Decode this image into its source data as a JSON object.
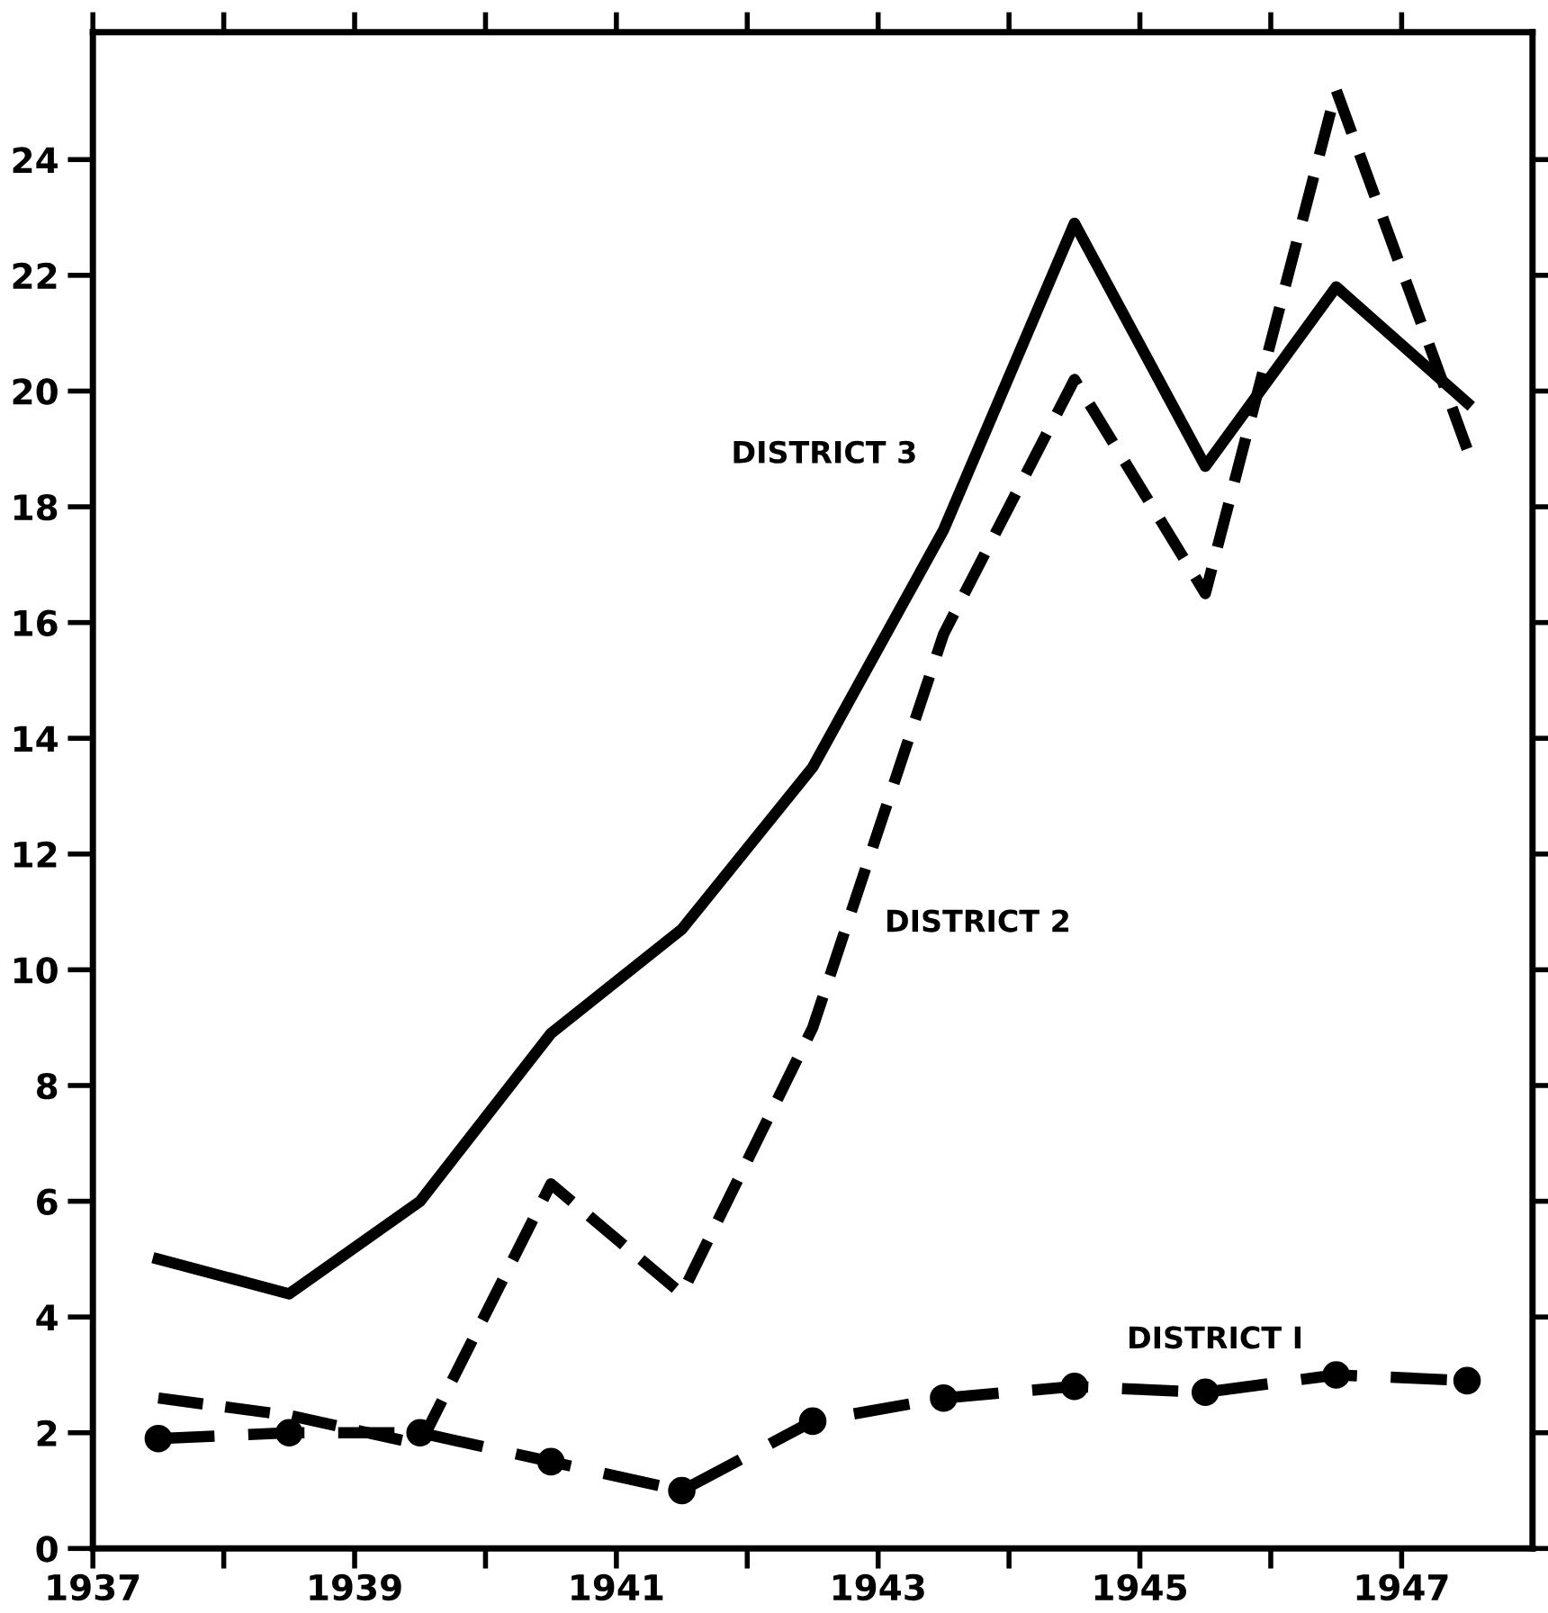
{
  "chart_data": {
    "type": "line",
    "x": [
      1937.5,
      1938.5,
      1939.5,
      1940.5,
      1941.5,
      1942.5,
      1943.5,
      1944.5,
      1945.5,
      1946.5,
      1947.5
    ],
    "series": [
      {
        "name": "DISTRICT 3",
        "color": "#000000",
        "line_style": "solid",
        "marker": "none",
        "values": [
          5.0,
          4.4,
          6.0,
          8.9,
          10.7,
          13.5,
          17.6,
          22.9,
          18.7,
          21.8,
          19.8
        ]
      },
      {
        "name": "DISTRICT 2",
        "color": "#000000",
        "line_style": "dashed",
        "marker": "none",
        "values": [
          2.6,
          2.3,
          1.8,
          6.3,
          4.4,
          9.0,
          15.8,
          20.2,
          16.5,
          25.2,
          19.0
        ]
      },
      {
        "name": "DISTRICT I",
        "color": "#000000",
        "line_style": "dashed",
        "marker": "circle",
        "values": [
          1.9,
          2.0,
          2.0,
          1.5,
          1.0,
          2.2,
          2.6,
          2.8,
          2.7,
          3.0,
          2.9
        ]
      }
    ],
    "xlim": [
      1937,
      1948
    ],
    "xticks": [
      1937,
      {
        "value": 1938,
        "label": null
      },
      1939,
      {
        "value": 1940,
        "label": null
      },
      1941,
      {
        "value": 1942,
        "label": null
      },
      1943,
      {
        "value": 1944,
        "label": null
      },
      1945,
      {
        "value": 1946,
        "label": null
      },
      1947
    ],
    "ylim": [
      0,
      26.2
    ],
    "yticks": [
      0,
      2,
      4,
      6,
      8,
      10,
      12,
      14,
      16,
      18,
      20,
      22,
      24
    ],
    "grid": false,
    "legend": false
  }
}
